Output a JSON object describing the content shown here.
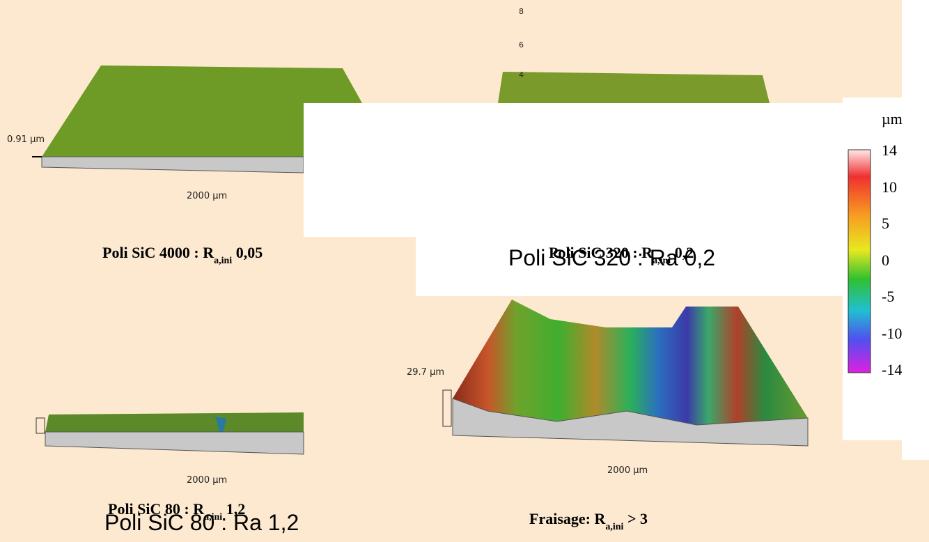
{
  "plots": [
    {
      "z_label": "0.91 µm",
      "x_label": "2000 µm"
    },
    {
      "z_ticks": [
        "8",
        "6",
        "4"
      ]
    },
    {
      "x_label": "2000 µm"
    },
    {
      "z_label": "29.7 µm",
      "x_label": "2000 µm"
    }
  ],
  "captions": [
    {
      "text": "Poli SiC 4000 : R",
      "sub": "a,ini",
      "tail": " 0,05"
    },
    {
      "text": "Poli SiC 320 : R",
      "sub": "a,ini",
      "tail": " 0,2",
      "overlay": "Poli SiC 320 : Ra 0,2"
    },
    {
      "text": "Poli SiC 80 : R",
      "sub": "a,ini",
      "tail": " 1,2",
      "overlay": "Poli SiC 80 : Ra 1,2"
    },
    {
      "text": "Fraisage: R",
      "sub": "a,ini",
      "tail": " > 3"
    }
  ],
  "colorbar": {
    "unit": "µm",
    "ticks": [
      "14",
      "10",
      "5",
      "0",
      "-5",
      "-10",
      "-14"
    ]
  }
}
